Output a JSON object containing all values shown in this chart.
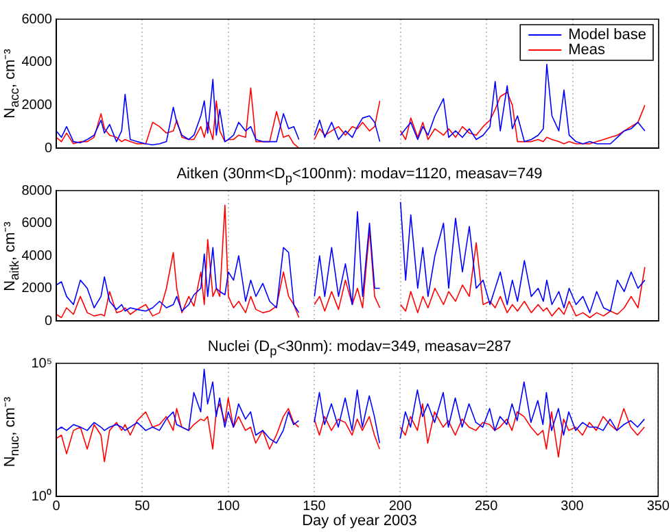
{
  "chart_data": [
    {
      "type": "line",
      "ylabel": "N$_{acc}$, cm⁻³",
      "xlim": [
        0,
        350
      ],
      "xticks": [
        0,
        50,
        100,
        150,
        200,
        250,
        300,
        350
      ],
      "ylim": [
        0,
        6000
      ],
      "yticks": [
        0,
        2000,
        4000,
        6000
      ],
      "grid": "x",
      "tick_labels": "y",
      "legend": "top right",
      "marker": "none",
      "x": [
        0,
        3,
        6,
        10,
        14,
        18,
        22,
        26,
        28,
        31,
        35,
        38,
        40,
        43,
        47,
        52,
        56,
        60,
        64,
        68,
        70,
        73,
        77,
        80,
        84,
        86,
        88,
        91,
        93,
        95,
        98,
        100,
        103,
        106,
        110,
        113,
        116,
        120,
        124,
        128,
        132,
        135,
        138,
        141,
        145,
        150,
        153,
        156,
        160,
        164,
        168,
        172,
        175,
        178,
        182,
        185,
        188,
        194,
        200,
        203,
        206,
        210,
        213,
        216,
        220,
        225,
        228,
        232,
        236,
        240,
        244,
        248,
        252,
        255,
        258,
        262,
        265,
        268,
        272,
        276,
        280,
        283,
        285,
        288,
        292,
        295,
        298,
        302,
        306,
        310,
        314,
        318,
        322,
        326,
        330,
        334,
        338,
        342
      ],
      "series": [
        {
          "name": "Model base",
          "color": "#0000ff",
          "values": [
            800,
            500,
            1000,
            300,
            250,
            400,
            600,
            1300,
            700,
            1100,
            300,
            800,
            2500,
            400,
            300,
            200,
            150,
            200,
            300,
            1900,
            1200,
            600,
            400,
            600,
            1500,
            2200,
            700,
            3200,
            600,
            1800,
            300,
            400,
            600,
            1200,
            800,
            1000,
            400,
            300,
            300,
            300,
            1600,
            900,
            1000,
            400,
            null,
            600,
            1300,
            500,
            1200,
            400,
            800,
            500,
            1000,
            1400,
            1500,
            1200,
            300,
            null,
            600,
            900,
            1200,
            400,
            1000,
            600,
            1500,
            2300,
            500,
            800,
            500,
            900,
            400,
            600,
            1000,
            3100,
            800,
            2900,
            900,
            1500,
            300,
            400,
            600,
            900,
            3900,
            1500,
            800,
            2700,
            600,
            300,
            200,
            300,
            200,
            200,
            200,
            500,
            800,
            900,
            1200,
            800
          ]
        },
        {
          "name": "Meas",
          "color": "#ff0000",
          "values": [
            500,
            300,
            700,
            200,
            300,
            300,
            500,
            1600,
            900,
            600,
            500,
            300,
            400,
            300,
            200,
            200,
            1200,
            1000,
            700,
            800,
            1300,
            500,
            400,
            400,
            1000,
            500,
            1200,
            400,
            2200,
            800,
            300,
            400,
            400,
            600,
            500,
            2800,
            300,
            300,
            300,
            1700,
            500,
            600,
            200,
            0,
            null,
            400,
            900,
            600,
            800,
            1000,
            600,
            1000,
            900,
            1200,
            800,
            1000,
            2200,
            null,
            800,
            400,
            1400,
            500,
            1200,
            400,
            900,
            600,
            900,
            500,
            1000,
            700,
            600,
            1000,
            1300,
            1800,
            2400,
            2600,
            2000,
            300,
            300,
            300,
            400,
            300,
            500,
            400,
            300,
            200,
            300,
            200,
            200,
            200,
            300,
            400,
            500,
            600,
            800,
            1000,
            1200,
            2000
          ]
        }
      ]
    },
    {
      "type": "line",
      "title": "Aitken (30nm<D$_{p}$<100nm): modav=1120, measav=749",
      "ylabel": "N$_{aitk}$, cm⁻³",
      "xlim": [
        0,
        350
      ],
      "xticks": [
        0,
        50,
        100,
        150,
        200,
        250,
        300,
        350
      ],
      "ylim": [
        0,
        8000
      ],
      "yticks": [
        0,
        2000,
        4000,
        6000,
        8000
      ],
      "grid": "x",
      "tick_labels": "y",
      "marker": "none",
      "x": [
        0,
        3,
        6,
        10,
        14,
        18,
        22,
        26,
        28,
        31,
        35,
        38,
        40,
        43,
        47,
        52,
        56,
        60,
        64,
        68,
        70,
        73,
        77,
        80,
        84,
        86,
        88,
        91,
        93,
        95,
        98,
        100,
        103,
        106,
        110,
        113,
        116,
        120,
        124,
        128,
        132,
        135,
        138,
        141,
        145,
        150,
        153,
        156,
        160,
        164,
        168,
        172,
        175,
        178,
        182,
        185,
        188,
        194,
        200,
        203,
        206,
        210,
        213,
        216,
        220,
        225,
        228,
        232,
        236,
        240,
        244,
        248,
        252,
        255,
        258,
        262,
        265,
        268,
        272,
        276,
        280,
        283,
        285,
        288,
        292,
        295,
        298,
        302,
        306,
        310,
        314,
        318,
        322,
        326,
        330,
        334,
        338,
        342
      ],
      "series": [
        {
          "color": "#0000ff",
          "values": [
            2200,
            2400,
            1500,
            1000,
            2500,
            2000,
            800,
            1500,
            2700,
            1200,
            700,
            1000,
            600,
            800,
            700,
            600,
            800,
            1200,
            800,
            1000,
            1500,
            600,
            1000,
            1600,
            2000,
            4100,
            1500,
            4500,
            2000,
            1800,
            1600,
            3000,
            2500,
            4000,
            1200,
            2500,
            1500,
            2300,
            1200,
            800,
            4500,
            4200,
            1000,
            500,
            null,
            1500,
            4000,
            1500,
            4500,
            1500,
            3500,
            1000,
            6700,
            1500,
            6000,
            2000,
            2000,
            null,
            7300,
            2500,
            6500,
            2000,
            4500,
            1500,
            4000,
            6000,
            2000,
            6300,
            3000,
            5800,
            2000,
            2500,
            1000,
            2000,
            3000,
            1000,
            2500,
            1200,
            3700,
            1500,
            2000,
            1200,
            2500,
            1000,
            1800,
            800,
            2000,
            1000,
            1500,
            500,
            1800,
            800,
            600,
            2500,
            1800,
            3000,
            2000,
            2500
          ]
        },
        {
          "color": "#ff0000",
          "values": [
            400,
            200,
            800,
            400,
            1500,
            500,
            300,
            400,
            300,
            1800,
            500,
            600,
            800,
            400,
            700,
            1000,
            300,
            500,
            2000,
            4200,
            2000,
            500,
            1500,
            900,
            3000,
            1000,
            5000,
            1500,
            2000,
            1500,
            7100,
            1500,
            800,
            1200,
            500,
            1500,
            700,
            500,
            600,
            900,
            3000,
            1500,
            1000,
            200,
            null,
            1000,
            1500,
            600,
            1800,
            700,
            2500,
            1000,
            2000,
            800,
            5600,
            1500,
            800,
            null,
            1000,
            600,
            1800,
            500,
            1500,
            800,
            2000,
            1000,
            1800,
            1200,
            2200,
            1500,
            4800,
            1000,
            1200,
            800,
            1500,
            500,
            1000,
            600,
            1200,
            500,
            1000,
            600,
            800,
            300,
            800,
            400,
            1200,
            300,
            500,
            200,
            500,
            300,
            600,
            400,
            800,
            1500,
            800,
            3300
          ]
        }
      ]
    },
    {
      "type": "line",
      "title": "Nuclei (D$_{p}$<30nm): modav=349, measav=287",
      "xlabel": "Day of year 2003",
      "ylabel": "N$_{nuc}$, cm⁻³",
      "log": "y",
      "xlim": [
        0,
        350
      ],
      "xticks": [
        0,
        50,
        100,
        150,
        200,
        250,
        300,
        350
      ],
      "ylim": [
        1,
        100000
      ],
      "yticks": [
        {
          "value": 1,
          "label": "10⁰"
        },
        {
          "value": 100000,
          "label": "10⁵"
        }
      ],
      "grid": "x",
      "marker": "none",
      "x": [
        0,
        3,
        6,
        10,
        14,
        18,
        22,
        26,
        28,
        31,
        35,
        38,
        40,
        43,
        47,
        52,
        56,
        60,
        64,
        68,
        70,
        73,
        77,
        80,
        84,
        86,
        88,
        91,
        93,
        95,
        98,
        100,
        103,
        106,
        110,
        113,
        116,
        120,
        124,
        128,
        132,
        135,
        138,
        141,
        145,
        150,
        153,
        156,
        160,
        164,
        168,
        172,
        175,
        178,
        182,
        185,
        188,
        194,
        200,
        203,
        206,
        210,
        213,
        216,
        220,
        225,
        228,
        232,
        236,
        240,
        244,
        248,
        252,
        255,
        258,
        262,
        265,
        268,
        272,
        276,
        280,
        283,
        285,
        288,
        292,
        295,
        298,
        302,
        306,
        310,
        314,
        318,
        322,
        326,
        330,
        334,
        338,
        342
      ],
      "series": [
        {
          "color": "#0000ff",
          "values": [
            300,
            400,
            300,
            500,
            400,
            300,
            600,
            400,
            300,
            400,
            500,
            400,
            300,
            400,
            600,
            300,
            400,
            300,
            800,
            1500,
            500,
            400,
            300,
            8000,
            1500,
            60000,
            3000,
            20000,
            1000,
            5000,
            400,
            1500,
            400,
            3000,
            800,
            1500,
            200,
            300,
            150,
            100,
            300,
            1500,
            500,
            700,
            null,
            600,
            8000,
            500,
            3000,
            400,
            5000,
            300,
            10000,
            400,
            6000,
            1000,
            100,
            null,
            150,
            1500,
            400,
            10000,
            1000,
            3000,
            600,
            8000,
            400,
            5000,
            400,
            3000,
            600,
            400,
            2000,
            300,
            1000,
            500,
            3000,
            700,
            20000,
            600,
            4000,
            500,
            8000,
            300,
            2000,
            200,
            1500,
            300,
            600,
            400,
            400,
            300,
            800,
            300,
            500,
            700,
            400,
            800
          ]
        },
        {
          "color": "#ff0000",
          "values": [
            150,
            200,
            40,
            300,
            400,
            60,
            500,
            200,
            20,
            300,
            600,
            300,
            500,
            200,
            700,
            1500,
            400,
            500,
            1000,
            300,
            2000,
            400,
            300,
            500,
            800,
            700,
            1000,
            60,
            1500,
            3000,
            600,
            5000,
            400,
            1000,
            300,
            400,
            100,
            300,
            60,
            200,
            1000,
            2000,
            600,
            400,
            null,
            800,
            200,
            1000,
            300,
            800,
            600,
            200,
            800,
            300,
            1000,
            200,
            60,
            null,
            400,
            200,
            1000,
            300,
            3000,
            100,
            1500,
            400,
            700,
            200,
            800,
            400,
            300,
            600,
            500,
            300,
            400,
            800,
            300,
            1500,
            1000,
            400,
            200,
            300,
            60,
            1500,
            30,
            800,
            300,
            400,
            200,
            600,
            300,
            1000,
            500,
            300,
            2000,
            400,
            200,
            400
          ]
        }
      ]
    }
  ]
}
